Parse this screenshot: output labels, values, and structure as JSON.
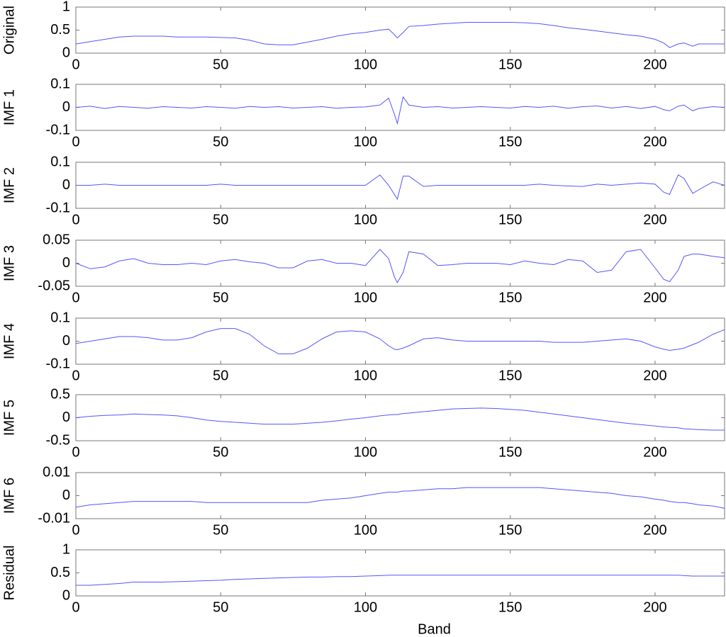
{
  "chart_data": [
    {
      "type": "line",
      "ylabel": "Original",
      "color": "#5555ff",
      "x": [
        0,
        5,
        10,
        15,
        20,
        25,
        30,
        35,
        40,
        45,
        50,
        55,
        60,
        65,
        70,
        75,
        80,
        85,
        90,
        95,
        100,
        105,
        108,
        110,
        111,
        113,
        115,
        120,
        125,
        130,
        135,
        140,
        145,
        150,
        155,
        160,
        165,
        170,
        175,
        180,
        185,
        190,
        195,
        200,
        203,
        205,
        208,
        210,
        213,
        215,
        220,
        224
      ],
      "values": [
        0.2,
        0.25,
        0.3,
        0.35,
        0.37,
        0.37,
        0.37,
        0.35,
        0.35,
        0.35,
        0.34,
        0.33,
        0.28,
        0.2,
        0.18,
        0.18,
        0.24,
        0.3,
        0.37,
        0.42,
        0.45,
        0.5,
        0.52,
        0.4,
        0.33,
        0.45,
        0.58,
        0.6,
        0.63,
        0.65,
        0.67,
        0.67,
        0.67,
        0.67,
        0.66,
        0.64,
        0.6,
        0.55,
        0.52,
        0.48,
        0.44,
        0.4,
        0.37,
        0.3,
        0.22,
        0.12,
        0.2,
        0.22,
        0.15,
        0.2,
        0.2,
        0.2
      ],
      "xlim": [
        0,
        224
      ],
      "xticks": [
        0,
        50,
        100,
        150,
        200
      ],
      "ylim": [
        0,
        1
      ],
      "yticks": [
        0,
        0.5,
        1
      ]
    },
    {
      "type": "line",
      "ylabel": "IMF 1",
      "color": "#5555ff",
      "x": [
        0,
        5,
        10,
        15,
        20,
        25,
        30,
        35,
        40,
        45,
        50,
        55,
        60,
        65,
        70,
        75,
        80,
        85,
        90,
        95,
        100,
        105,
        108,
        110,
        111,
        113,
        115,
        120,
        125,
        130,
        135,
        140,
        145,
        150,
        155,
        160,
        165,
        170,
        175,
        180,
        185,
        190,
        195,
        200,
        203,
        205,
        208,
        210,
        213,
        215,
        220,
        224
      ],
      "values": [
        0,
        0.005,
        -0.005,
        0.004,
        0,
        -0.004,
        0.003,
        0,
        -0.003,
        0.003,
        0,
        -0.004,
        0.004,
        0,
        0.003,
        -0.003,
        0,
        0.003,
        -0.004,
        0,
        0.002,
        0.01,
        0.04,
        -0.03,
        -0.07,
        0.045,
        0.01,
        0,
        0.003,
        -0.003,
        0,
        0.003,
        0,
        -0.003,
        0.004,
        0,
        0.005,
        -0.004,
        0.003,
        0.006,
        -0.003,
        0.004,
        -0.005,
        0.004,
        -0.01,
        -0.015,
        0.005,
        0.01,
        -0.015,
        -0.005,
        0.003,
        0
      ],
      "xlim": [
        0,
        224
      ],
      "xticks": [
        0,
        50,
        100,
        150,
        200
      ],
      "ylim": [
        -0.1,
        0.1
      ],
      "yticks": [
        -0.1,
        0,
        0.1
      ]
    },
    {
      "type": "line",
      "ylabel": "IMF 2",
      "color": "#5555ff",
      "x": [
        0,
        5,
        10,
        15,
        20,
        25,
        30,
        35,
        40,
        45,
        50,
        55,
        60,
        65,
        70,
        75,
        80,
        85,
        90,
        95,
        100,
        105,
        108,
        110,
        111,
        113,
        115,
        120,
        125,
        130,
        135,
        140,
        145,
        150,
        155,
        160,
        165,
        170,
        175,
        180,
        185,
        190,
        195,
        200,
        203,
        205,
        208,
        210,
        213,
        215,
        220,
        224
      ],
      "values": [
        0,
        0,
        0.005,
        0,
        0,
        0,
        0,
        0,
        0,
        0,
        0.005,
        0,
        0,
        0,
        0,
        0,
        0,
        0,
        0,
        0,
        0,
        0.045,
        0,
        -0.04,
        -0.06,
        0.04,
        0.04,
        -0.005,
        0,
        0,
        0,
        0,
        0,
        0,
        0,
        0.005,
        0,
        -0.003,
        -0.005,
        0.005,
        0,
        0.005,
        0.01,
        0.005,
        -0.03,
        -0.04,
        0.045,
        0.03,
        -0.035,
        -0.02,
        0.015,
        0
      ],
      "xlim": [
        0,
        224
      ],
      "xticks": [
        0,
        50,
        100,
        150,
        200
      ],
      "ylim": [
        -0.1,
        0.1
      ],
      "yticks": [
        -0.1,
        0,
        0.1
      ]
    },
    {
      "type": "line",
      "ylabel": "IMF 3",
      "color": "#5555ff",
      "x": [
        0,
        5,
        10,
        15,
        20,
        25,
        30,
        35,
        40,
        45,
        50,
        55,
        60,
        65,
        70,
        75,
        80,
        85,
        90,
        95,
        100,
        105,
        108,
        110,
        111,
        113,
        115,
        120,
        125,
        130,
        135,
        140,
        145,
        150,
        155,
        160,
        165,
        170,
        175,
        180,
        185,
        190,
        195,
        200,
        203,
        205,
        208,
        210,
        213,
        215,
        220,
        224
      ],
      "values": [
        0,
        -0.012,
        -0.008,
        0.005,
        0.01,
        0,
        -0.003,
        -0.003,
        0,
        -0.003,
        0.005,
        0.008,
        0.003,
        0,
        -0.01,
        -0.01,
        0.005,
        0.008,
        0,
        0,
        -0.005,
        0.03,
        0.01,
        -0.03,
        -0.042,
        -0.02,
        0.025,
        0.02,
        -0.005,
        -0.003,
        0,
        0,
        0,
        -0.003,
        0.005,
        0,
        -0.003,
        0.008,
        0.005,
        -0.02,
        -0.015,
        0.025,
        0.03,
        -0.01,
        -0.035,
        -0.04,
        -0.015,
        0.015,
        0.02,
        0.02,
        0.015,
        0.012
      ],
      "xlim": [
        0,
        224
      ],
      "xticks": [
        0,
        50,
        100,
        150,
        200
      ],
      "ylim": [
        -0.05,
        0.05
      ],
      "yticks": [
        -0.05,
        0,
        0.05
      ]
    },
    {
      "type": "line",
      "ylabel": "IMF 4",
      "color": "#5555ff",
      "x": [
        0,
        5,
        10,
        15,
        20,
        25,
        30,
        35,
        40,
        45,
        50,
        55,
        60,
        65,
        70,
        75,
        80,
        85,
        90,
        95,
        100,
        105,
        108,
        110,
        111,
        113,
        115,
        120,
        125,
        130,
        135,
        140,
        145,
        150,
        155,
        160,
        165,
        170,
        175,
        180,
        185,
        190,
        195,
        200,
        203,
        205,
        208,
        210,
        213,
        215,
        220,
        224
      ],
      "values": [
        -0.01,
        0,
        0.01,
        0.02,
        0.02,
        0.015,
        0.005,
        0.005,
        0.015,
        0.04,
        0.055,
        0.055,
        0.03,
        -0.02,
        -0.055,
        -0.055,
        -0.03,
        0.01,
        0.04,
        0.045,
        0.04,
        0.01,
        -0.02,
        -0.035,
        -0.037,
        -0.03,
        -0.02,
        0.01,
        0.015,
        0.005,
        0,
        0,
        0,
        0,
        0,
        0,
        -0.005,
        -0.005,
        -0.005,
        0,
        0.005,
        0.01,
        0,
        -0.025,
        -0.035,
        -0.04,
        -0.035,
        -0.03,
        -0.015,
        -0.005,
        0.03,
        0.05
      ],
      "xlim": [
        0,
        224
      ],
      "xticks": [
        0,
        50,
        100,
        150,
        200
      ],
      "ylim": [
        -0.1,
        0.1
      ],
      "yticks": [
        -0.1,
        0,
        0.1
      ]
    },
    {
      "type": "line",
      "ylabel": "IMF 5",
      "color": "#5555ff",
      "x": [
        0,
        5,
        10,
        15,
        20,
        25,
        30,
        35,
        40,
        45,
        50,
        55,
        60,
        65,
        70,
        75,
        80,
        85,
        90,
        95,
        100,
        105,
        108,
        110,
        111,
        113,
        115,
        120,
        125,
        130,
        135,
        140,
        145,
        150,
        155,
        160,
        165,
        170,
        175,
        180,
        185,
        190,
        195,
        200,
        203,
        205,
        208,
        210,
        213,
        215,
        220,
        224
      ],
      "values": [
        0,
        0.03,
        0.05,
        0.06,
        0.08,
        0.07,
        0.06,
        0.04,
        0,
        -0.05,
        -0.08,
        -0.1,
        -0.12,
        -0.14,
        -0.14,
        -0.14,
        -0.12,
        -0.1,
        -0.07,
        -0.03,
        0,
        0.04,
        0.06,
        0.07,
        0.07,
        0.09,
        0.1,
        0.13,
        0.16,
        0.19,
        0.2,
        0.21,
        0.2,
        0.18,
        0.16,
        0.12,
        0.08,
        0.04,
        0,
        -0.04,
        -0.08,
        -0.12,
        -0.15,
        -0.18,
        -0.2,
        -0.21,
        -0.22,
        -0.24,
        -0.25,
        -0.26,
        -0.27,
        -0.27
      ],
      "xlim": [
        0,
        224
      ],
      "xticks": [
        0,
        50,
        100,
        150,
        200
      ],
      "ylim": [
        -0.5,
        0.5
      ],
      "yticks": [
        -0.5,
        0,
        0.5
      ]
    },
    {
      "type": "line",
      "ylabel": "IMF 6",
      "color": "#5555ff",
      "x": [
        0,
        5,
        10,
        15,
        20,
        25,
        30,
        35,
        40,
        45,
        50,
        55,
        60,
        65,
        70,
        75,
        80,
        85,
        90,
        95,
        100,
        105,
        108,
        110,
        111,
        113,
        115,
        120,
        125,
        130,
        135,
        140,
        145,
        150,
        155,
        160,
        165,
        170,
        175,
        180,
        185,
        190,
        195,
        200,
        203,
        205,
        208,
        210,
        213,
        215,
        220,
        224
      ],
      "values": [
        -0.005,
        -0.004,
        -0.0035,
        -0.003,
        -0.0025,
        -0.0025,
        -0.0025,
        -0.0025,
        -0.0025,
        -0.003,
        -0.003,
        -0.003,
        -0.003,
        -0.003,
        -0.003,
        -0.003,
        -0.003,
        -0.002,
        -0.0015,
        -0.001,
        0,
        0.001,
        0.0015,
        0.0015,
        0.0015,
        0.002,
        0.002,
        0.0025,
        0.003,
        0.003,
        0.0035,
        0.0035,
        0.0035,
        0.0035,
        0.0035,
        0.0035,
        0.003,
        0.0025,
        0.002,
        0.0015,
        0.001,
        0,
        -0.0005,
        -0.0015,
        -0.002,
        -0.0025,
        -0.003,
        -0.003,
        -0.0035,
        -0.004,
        -0.0045,
        -0.0055
      ],
      "xlim": [
        0,
        224
      ],
      "xticks": [
        0,
        50,
        100,
        150,
        200
      ],
      "ylim": [
        -0.01,
        0.01
      ],
      "yticks": [
        -0.01,
        0,
        0.01
      ]
    },
    {
      "type": "line",
      "ylabel": "Residual",
      "xlabel": "Band",
      "color": "#5555ff",
      "x": [
        0,
        5,
        10,
        15,
        20,
        25,
        30,
        35,
        40,
        45,
        50,
        55,
        60,
        65,
        70,
        75,
        80,
        85,
        90,
        95,
        100,
        105,
        108,
        110,
        111,
        113,
        115,
        120,
        125,
        130,
        135,
        140,
        145,
        150,
        155,
        160,
        165,
        170,
        175,
        180,
        185,
        190,
        195,
        200,
        203,
        205,
        208,
        210,
        213,
        215,
        220,
        224
      ],
      "values": [
        0.23,
        0.23,
        0.25,
        0.27,
        0.3,
        0.3,
        0.3,
        0.31,
        0.32,
        0.33,
        0.34,
        0.36,
        0.37,
        0.38,
        0.39,
        0.4,
        0.41,
        0.41,
        0.42,
        0.42,
        0.43,
        0.44,
        0.45,
        0.45,
        0.45,
        0.45,
        0.45,
        0.45,
        0.45,
        0.45,
        0.45,
        0.45,
        0.45,
        0.45,
        0.45,
        0.45,
        0.45,
        0.45,
        0.45,
        0.45,
        0.45,
        0.45,
        0.45,
        0.45,
        0.45,
        0.45,
        0.45,
        0.44,
        0.43,
        0.43,
        0.43,
        0.43
      ],
      "xlim": [
        0,
        224
      ],
      "xticks": [
        0,
        50,
        100,
        150,
        200
      ],
      "ylim": [
        0,
        1
      ],
      "yticks": [
        0,
        0.5,
        1
      ]
    }
  ]
}
